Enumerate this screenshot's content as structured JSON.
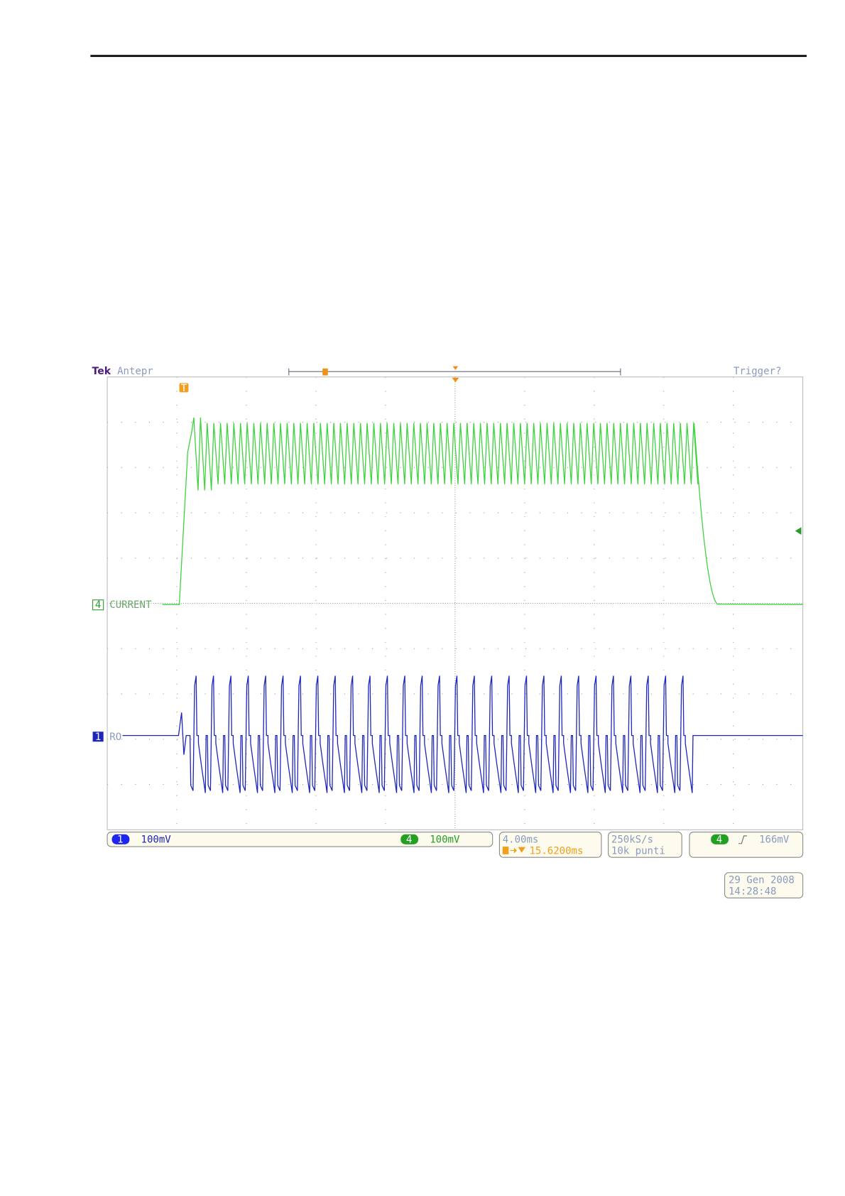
{
  "scope": {
    "brand": "Tek",
    "mode": "Antepr",
    "trigger_status": "Trigger?",
    "trigger_marker": "T",
    "ch4_marker": "4",
    "ch4_label": "CURRENT",
    "ch1_marker": "1",
    "ch1_label": "RO",
    "ch1_badge": "1",
    "ch1_scale": "100mV",
    "ch4_badge": "4",
    "ch4_scale": "100mV",
    "timebase": "4.00ms",
    "trigger_position": "15.6200ms",
    "sample_rate": "250kS/s",
    "record_length": "10k punti",
    "trigger_source": "4",
    "trigger_level": "166mV",
    "date": "29 Gen 2008",
    "time": "14:28:48"
  }
}
